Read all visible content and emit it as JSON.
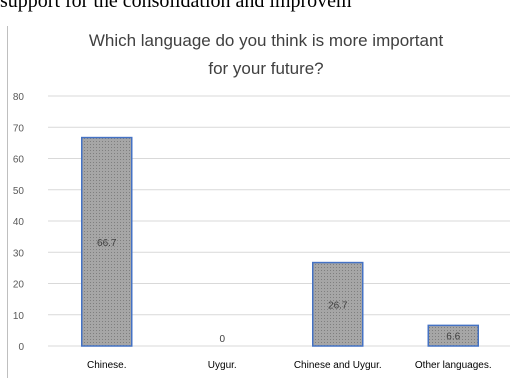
{
  "document": {
    "fragment_text": "support for the consolidation and improvem"
  },
  "chart_data": {
    "type": "bar",
    "title_lines": [
      "Which language do you think is more important",
      "for your future?"
    ],
    "categories": [
      "Chinese.",
      "Uygur.",
      "Chinese and Uygur.",
      "Other languages."
    ],
    "values": [
      66.7,
      0,
      26.7,
      6.6
    ],
    "data_labels": [
      "66.7",
      "0",
      "26.7",
      "6.6"
    ],
    "ylim": [
      0,
      80
    ],
    "yticks": [
      0,
      10,
      20,
      30,
      40,
      50,
      60,
      70,
      80
    ],
    "grid": true,
    "legend": "none",
    "xlabel": "",
    "ylabel": "",
    "colors": {
      "bar_fill": "#a6a6a6",
      "bar_stroke": "#4472c4",
      "grid": "#d9d9d9",
      "title": "#404040"
    }
  }
}
